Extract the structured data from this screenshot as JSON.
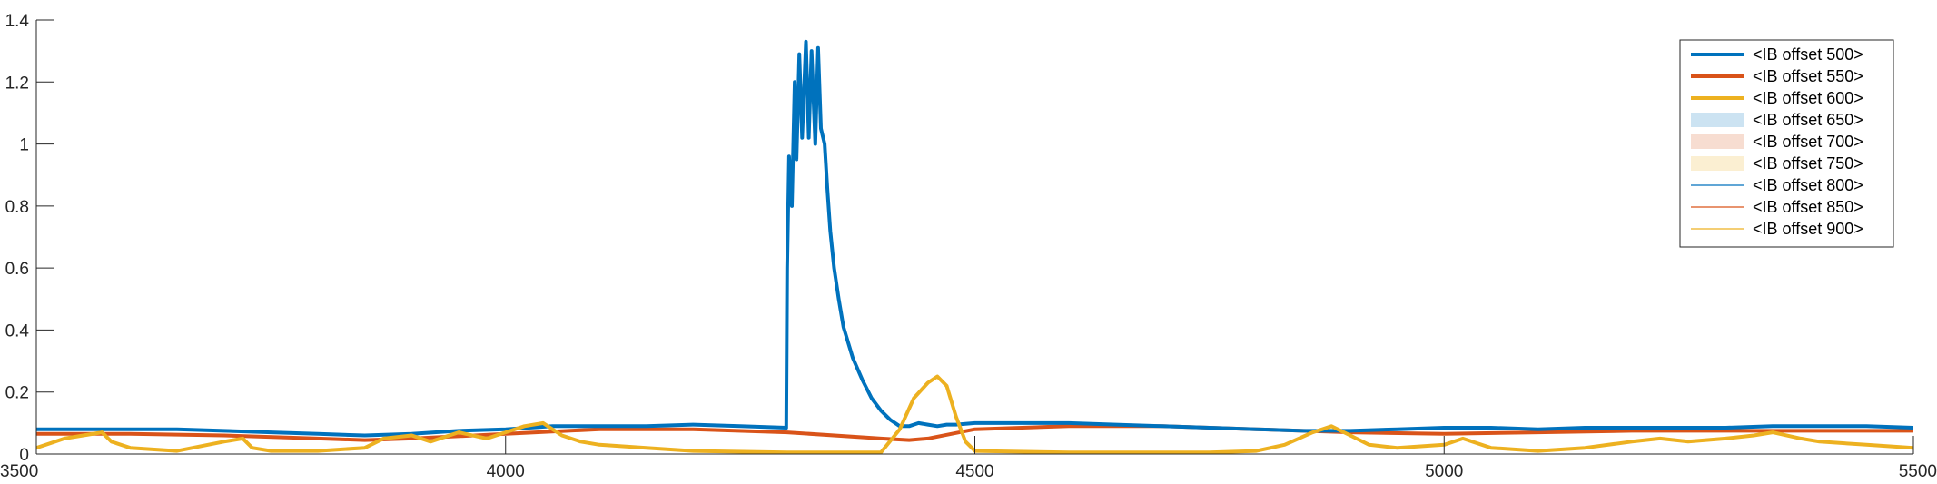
{
  "chart_data": {
    "type": "line",
    "title": "",
    "xlabel": "",
    "ylabel": "",
    "xlim": [
      3500,
      5500
    ],
    "ylim": [
      0,
      1.4
    ],
    "xticks": [
      3500,
      4000,
      4500,
      5000,
      5500
    ],
    "xtick_labels": [
      "3500",
      "4000",
      "4500",
      "5000",
      "5500"
    ],
    "yticks": [
      0,
      0.2,
      0.4,
      0.6,
      0.8,
      1,
      1.2,
      1.4
    ],
    "ytick_labels": [
      "0",
      "0.2",
      "0.4",
      "0.6",
      "0.8",
      "1",
      "1.2",
      "1.4"
    ],
    "grid": false,
    "legend_position": "top-right",
    "series": [
      {
        "name": "<IB offset 500>",
        "color": "#0072BD",
        "style": "thick-line",
        "x": [
          3500,
          3550,
          3600,
          3650,
          3700,
          3750,
          3800,
          3850,
          3900,
          3950,
          4000,
          4050,
          4100,
          4150,
          4200,
          4250,
          4299,
          4300,
          4302,
          4305,
          4308,
          4310,
          4313,
          4316,
          4320,
          4323,
          4326,
          4330,
          4333,
          4336,
          4340,
          4343,
          4346,
          4350,
          4355,
          4360,
          4370,
          4380,
          4390,
          4400,
          4410,
          4420,
          4430,
          4440,
          4450,
          4460,
          4470,
          4480,
          4500,
          4550,
          4600,
          4650,
          4700,
          4750,
          4800,
          4850,
          4900,
          4950,
          5000,
          5050,
          5100,
          5150,
          5200,
          5250,
          5300,
          5350,
          5400,
          5450,
          5500
        ],
        "y": [
          0.08,
          0.08,
          0.08,
          0.08,
          0.075,
          0.07,
          0.065,
          0.06,
          0.065,
          0.075,
          0.08,
          0.09,
          0.09,
          0.09,
          0.095,
          0.09,
          0.085,
          0.6,
          0.96,
          0.8,
          1.2,
          0.95,
          1.29,
          1.02,
          1.33,
          1.02,
          1.3,
          1.0,
          1.31,
          1.05,
          1.0,
          0.85,
          0.72,
          0.6,
          0.5,
          0.41,
          0.31,
          0.24,
          0.18,
          0.14,
          0.11,
          0.09,
          0.09,
          0.1,
          0.095,
          0.09,
          0.095,
          0.095,
          0.1,
          0.1,
          0.1,
          0.095,
          0.09,
          0.085,
          0.08,
          0.075,
          0.075,
          0.08,
          0.085,
          0.085,
          0.08,
          0.085,
          0.085,
          0.085,
          0.085,
          0.09,
          0.09,
          0.09,
          0.085
        ]
      },
      {
        "name": "<IB offset 550>",
        "color": "#D95319",
        "style": "thick-line",
        "x": [
          3500,
          3600,
          3700,
          3800,
          3850,
          3900,
          4000,
          4100,
          4200,
          4300,
          4400,
          4430,
          4450,
          4500,
          4600,
          4700,
          4800,
          4900,
          5000,
          5100,
          5200,
          5300,
          5400,
          5500
        ],
        "y": [
          0.065,
          0.065,
          0.06,
          0.05,
          0.045,
          0.05,
          0.065,
          0.08,
          0.08,
          0.07,
          0.05,
          0.045,
          0.05,
          0.08,
          0.09,
          0.09,
          0.08,
          0.07,
          0.065,
          0.07,
          0.075,
          0.075,
          0.075,
          0.075
        ]
      },
      {
        "name": "<IB offset 600>",
        "color": "#EDB120",
        "style": "thick-line",
        "x": [
          3500,
          3510,
          3530,
          3550,
          3570,
          3580,
          3600,
          3650,
          3700,
          3720,
          3730,
          3750,
          3800,
          3850,
          3870,
          3900,
          3920,
          3950,
          3980,
          4000,
          4020,
          4040,
          4060,
          4080,
          4100,
          4150,
          4200,
          4300,
          4400,
          4420,
          4435,
          4450,
          4460,
          4470,
          4480,
          4490,
          4500,
          4600,
          4700,
          4750,
          4800,
          4830,
          4860,
          4880,
          4900,
          4920,
          4950,
          5000,
          5020,
          5050,
          5100,
          5150,
          5200,
          5230,
          5260,
          5300,
          5330,
          5350,
          5380,
          5400,
          5450,
          5500
        ],
        "y": [
          0.02,
          0.03,
          0.05,
          0.06,
          0.07,
          0.04,
          0.02,
          0.01,
          0.04,
          0.05,
          0.02,
          0.01,
          0.01,
          0.02,
          0.05,
          0.06,
          0.04,
          0.07,
          0.05,
          0.07,
          0.09,
          0.1,
          0.06,
          0.04,
          0.03,
          0.02,
          0.01,
          0.005,
          0.005,
          0.08,
          0.18,
          0.23,
          0.25,
          0.22,
          0.12,
          0.04,
          0.01,
          0.005,
          0.005,
          0.005,
          0.01,
          0.03,
          0.07,
          0.09,
          0.06,
          0.03,
          0.02,
          0.03,
          0.05,
          0.02,
          0.01,
          0.02,
          0.04,
          0.05,
          0.04,
          0.05,
          0.06,
          0.07,
          0.05,
          0.04,
          0.03,
          0.02
        ]
      },
      {
        "name": "<IB offset 650>",
        "color": "#0072BD",
        "style": "light-patch",
        "x": [],
        "y": []
      },
      {
        "name": "<IB offset 700>",
        "color": "#D95319",
        "style": "light-patch",
        "x": [],
        "y": []
      },
      {
        "name": "<IB offset 750>",
        "color": "#EDB120",
        "style": "light-patch",
        "x": [],
        "y": []
      },
      {
        "name": "<IB offset 800>",
        "color": "#0072BD",
        "style": "thin-line",
        "x": [],
        "y": []
      },
      {
        "name": "<IB offset 850>",
        "color": "#D95319",
        "style": "thin-line",
        "x": [],
        "y": []
      },
      {
        "name": "<IB offset 900>",
        "color": "#EDB120",
        "style": "thin-line",
        "x": [],
        "y": []
      }
    ]
  }
}
